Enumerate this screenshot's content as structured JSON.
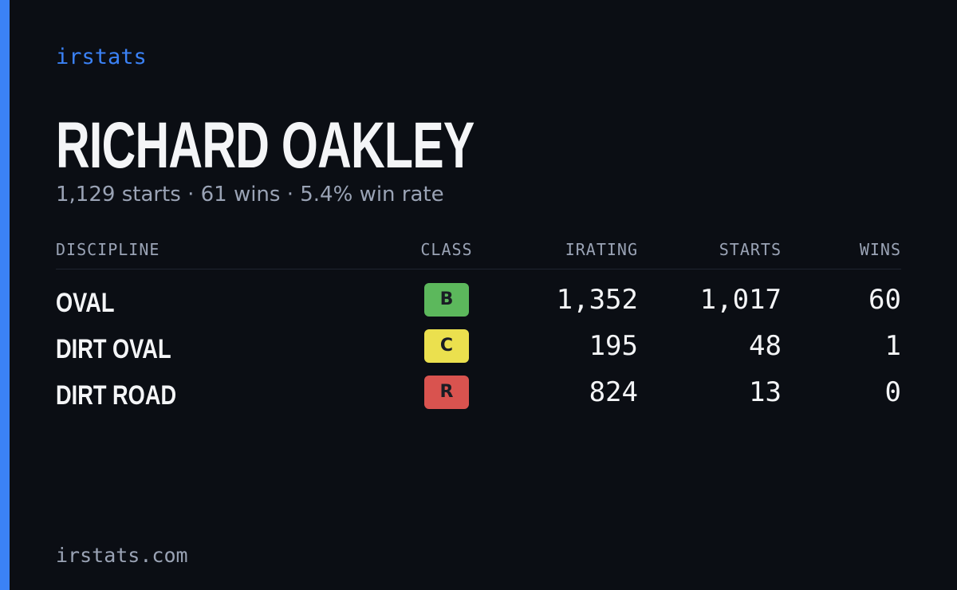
{
  "header": {
    "brand": "irstats",
    "name": "RICHARD OAKLEY",
    "summary": "1,129 starts · 61 wins · 5.4% win rate"
  },
  "table": {
    "columns": [
      "DISCIPLINE",
      "CLASS",
      "IRATING",
      "STARTS",
      "WINS"
    ],
    "rows": [
      {
        "discipline": "OVAL",
        "class": "B",
        "class_color": "#5cb85c",
        "irating": "1,352",
        "starts": "1,017",
        "wins": "60"
      },
      {
        "discipline": "DIRT OVAL",
        "class": "C",
        "class_color": "#ebe04e",
        "irating": "195",
        "starts": "48",
        "wins": "1"
      },
      {
        "discipline": "DIRT ROAD",
        "class": "R",
        "class_color": "#d9534f",
        "irating": "824",
        "starts": "13",
        "wins": "0"
      }
    ]
  },
  "footer": {
    "url": "irstats.com"
  }
}
